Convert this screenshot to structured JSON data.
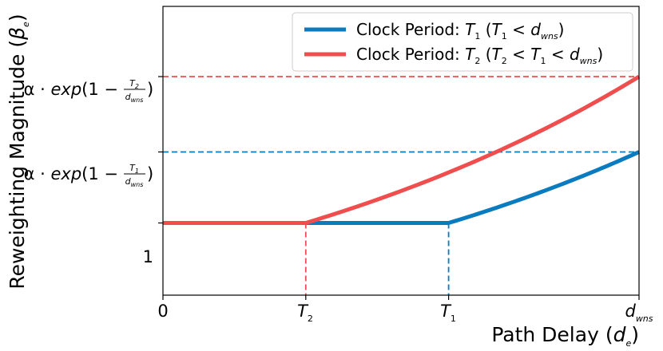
{
  "chart_data": {
    "type": "line",
    "title": "",
    "xlabel": "Path Delay (d_e)",
    "ylabel": "Reweighting Magnitude (β_e)",
    "xlim": [
      0,
      1
    ],
    "ylim": [
      0.5,
      2.5
    ],
    "x_ticks": [
      {
        "value": 0,
        "label": "0"
      },
      {
        "value": 0.3,
        "label": "T_2"
      },
      {
        "value": 0.6,
        "label": "T_1"
      },
      {
        "value": 1,
        "label": "d_wns"
      }
    ],
    "y_ticks": [
      {
        "value": 1,
        "label": "1"
      },
      {
        "value": 1.4918,
        "label": "α · exp(1 − T_1/d_wns)"
      },
      {
        "value": 2.0138,
        "label": "α · exp(1 − T_2/d_wns)"
      }
    ],
    "series": [
      {
        "name": "Clock Period: T_1 (T_1 < d_wns)",
        "color": "#0b7bbf",
        "x": [
          0,
          0.6,
          0.65,
          0.7,
          0.75,
          0.8,
          0.85,
          0.9,
          0.95,
          1.0
        ],
        "y": [
          1,
          1,
          1.0513,
          1.1052,
          1.1618,
          1.2214,
          1.284,
          1.3499,
          1.4191,
          1.4918
        ]
      },
      {
        "name": "Clock Period: T_2 (T_2 < T_1 < d_wns)",
        "color": "#f04e4e",
        "x": [
          0,
          0.3,
          0.4,
          0.5,
          0.6,
          0.7,
          0.8,
          0.9,
          1.0
        ],
        "y": [
          1,
          1,
          1.1052,
          1.2214,
          1.3499,
          1.4918,
          1.6487,
          1.8221,
          2.0138
        ]
      }
    ],
    "grid": false,
    "legend": "top-right"
  }
}
